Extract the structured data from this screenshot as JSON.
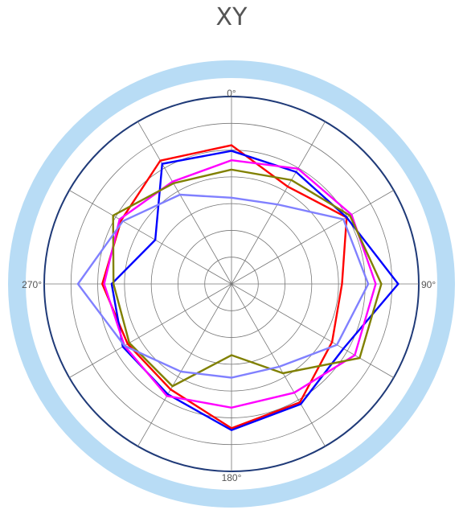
{
  "chart_data": {
    "type": "line",
    "subtype": "polar",
    "title": "XY",
    "angular_tick_labels": [
      "0°",
      "90°",
      "180°",
      "270°"
    ],
    "angular_step_degrees": 30,
    "radial_range": [
      0,
      1
    ],
    "radial_rings": 7,
    "grid": true,
    "colors": {
      "outer_band": "#b8dcf5",
      "frame": "#1f3a78",
      "grid": "#777777"
    },
    "series": [
      {
        "color": "#ff0000",
        "angles": [
          0,
          30,
          60,
          90,
          120,
          150,
          180,
          210,
          240,
          270,
          300,
          330
        ],
        "values": [
          0.74,
          0.6,
          0.71,
          0.59,
          0.62,
          0.73,
          0.77,
          0.65,
          0.64,
          0.69,
          0.68,
          0.76
        ]
      },
      {
        "color": "#0000ff",
        "angles": [
          0,
          30,
          60,
          90,
          120,
          150,
          180,
          210,
          240,
          270,
          300,
          330
        ],
        "values": [
          0.71,
          0.69,
          0.71,
          0.89,
          0.69,
          0.74,
          0.78,
          0.68,
          0.67,
          0.64,
          0.47,
          0.74
        ]
      },
      {
        "color": "#ff00ff",
        "angles": [
          0,
          30,
          60,
          90,
          120,
          150,
          180,
          210,
          240,
          270,
          300,
          330
        ],
        "values": [
          0.66,
          0.71,
          0.74,
          0.77,
          0.76,
          0.67,
          0.66,
          0.69,
          0.66,
          0.68,
          0.69,
          0.63
        ]
      },
      {
        "color": "#808000",
        "angles": [
          0,
          30,
          60,
          90,
          120,
          150,
          180,
          210,
          240,
          270,
          300,
          330
        ],
        "values": [
          0.61,
          0.64,
          0.73,
          0.8,
          0.79,
          0.55,
          0.38,
          0.63,
          0.63,
          0.63,
          0.73,
          0.62
        ]
      },
      {
        "color": "#8080ff",
        "angles": [
          0,
          30,
          60,
          90,
          120,
          150,
          180,
          210,
          240,
          270,
          300,
          330
        ],
        "values": [
          0.46,
          0.49,
          0.69,
          0.73,
          0.65,
          0.51,
          0.5,
          0.54,
          0.66,
          0.82,
          0.67,
          0.55
        ]
      }
    ]
  }
}
